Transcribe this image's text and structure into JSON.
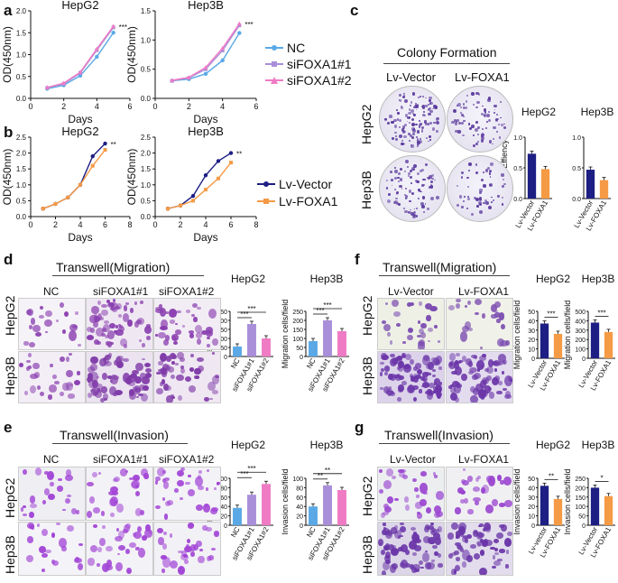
{
  "panels": {
    "a": {
      "letter": "a",
      "legend": [
        {
          "name": "NC",
          "color": "#5aa9e6"
        },
        {
          "name": "siFOXA1#1",
          "color": "#a98fd9"
        },
        {
          "name": "siFOXA1#2",
          "color": "#ef7bc4"
        }
      ]
    },
    "b": {
      "letter": "b",
      "legend": [
        {
          "name": "Lv-Vector",
          "color": "#1d1f84"
        },
        {
          "name": "Lv-FOXA1",
          "color": "#f59a45"
        }
      ]
    },
    "c": {
      "letter": "c",
      "title": "Colony Formation",
      "col_labels": [
        "Lv-Vector",
        "Lv-FOXA1"
      ],
      "row_labels": [
        "HepG2",
        "Hep3B"
      ]
    },
    "d": {
      "letter": "d",
      "title": "Transwell(Migration)",
      "col_labels": [
        "NC",
        "siFOXA1#1",
        "siFOXA1#2"
      ],
      "row_labels": [
        "HepG2",
        "Hep3B"
      ]
    },
    "e": {
      "letter": "e",
      "title": "Transwell(Invasion)",
      "col_labels": [
        "NC",
        "siFOXA1#1",
        "siFOXA1#2"
      ],
      "row_labels": [
        "HepG2",
        "Hep3B"
      ]
    },
    "f": {
      "letter": "f",
      "title": "Transwell(Migration)",
      "col_labels": [
        "Lv-Vector",
        "Lv-FOXA1"
      ],
      "row_labels": [
        "HepG2",
        "Hep3B"
      ]
    },
    "g": {
      "letter": "g",
      "title": "Transwell(Invasion)",
      "col_labels": [
        "Lv-Vector",
        "Lv-FOXA1"
      ],
      "row_labels": [
        "HepG2",
        "Hep3B"
      ]
    }
  },
  "chart_data": [
    {
      "id": "a-hepg2",
      "type": "line",
      "title": "HepG2",
      "xlabel": "Days",
      "ylabel": "OD(450nm)",
      "xlim": [
        0,
        6
      ],
      "ylim": [
        0,
        2
      ],
      "xticks": [
        0,
        2,
        4,
        6
      ],
      "yticks": [
        0,
        0.5,
        1.0,
        1.5,
        2.0
      ],
      "series": [
        {
          "name": "NC",
          "color": "#5aa9e6",
          "x": [
            1,
            2,
            3,
            4,
            5
          ],
          "y": [
            0.22,
            0.3,
            0.52,
            0.95,
            1.5
          ]
        },
        {
          "name": "siFOXA1#1",
          "color": "#a98fd9",
          "x": [
            1,
            2,
            3,
            4,
            5
          ],
          "y": [
            0.24,
            0.33,
            0.58,
            1.1,
            1.62
          ]
        },
        {
          "name": "siFOXA1#2",
          "color": "#ef7bc4",
          "x": [
            1,
            2,
            3,
            4,
            5
          ],
          "y": [
            0.25,
            0.35,
            0.6,
            1.13,
            1.65
          ]
        }
      ],
      "annotations": [
        "***"
      ]
    },
    {
      "id": "a-hep3b",
      "type": "line",
      "title": "Hep3B",
      "xlabel": "Days",
      "ylabel": "OD(450nm)",
      "xlim": [
        0,
        6
      ],
      "ylim": [
        0,
        1.5
      ],
      "xticks": [
        0,
        2,
        4,
        6
      ],
      "yticks": [
        0,
        0.5,
        1.0,
        1.5
      ],
      "series": [
        {
          "name": "NC",
          "color": "#5aa9e6",
          "x": [
            1,
            2,
            3,
            4,
            5
          ],
          "y": [
            0.3,
            0.33,
            0.42,
            0.65,
            1.12
          ]
        },
        {
          "name": "siFOXA1#1",
          "color": "#a98fd9",
          "x": [
            1,
            2,
            3,
            4,
            5
          ],
          "y": [
            0.3,
            0.35,
            0.5,
            0.82,
            1.25
          ]
        },
        {
          "name": "siFOXA1#2",
          "color": "#ef7bc4",
          "x": [
            1,
            2,
            3,
            4,
            5
          ],
          "y": [
            0.31,
            0.36,
            0.53,
            0.86,
            1.28
          ]
        }
      ],
      "annotations": [
        "***"
      ]
    },
    {
      "id": "b-hepg2",
      "type": "line",
      "title": "HepG2",
      "xlabel": "Days",
      "ylabel": "OD(450nm)",
      "xlim": [
        0,
        8
      ],
      "ylim": [
        0,
        2.5
      ],
      "xticks": [
        0,
        2,
        4,
        6,
        8
      ],
      "yticks": [
        0,
        0.5,
        1.0,
        1.5,
        2.0,
        2.5
      ],
      "series": [
        {
          "name": "Lv-Vector",
          "color": "#1d1f84",
          "x": [
            1,
            2,
            3,
            4,
            5,
            6
          ],
          "y": [
            0.25,
            0.4,
            0.6,
            1.0,
            1.9,
            2.3
          ]
        },
        {
          "name": "Lv-FOXA1",
          "color": "#f59a45",
          "x": [
            1,
            2,
            3,
            4,
            5,
            6
          ],
          "y": [
            0.25,
            0.4,
            0.6,
            1.0,
            1.6,
            2.1
          ]
        }
      ],
      "annotations": [
        "**"
      ]
    },
    {
      "id": "b-hep3b",
      "type": "line",
      "title": "Hep3B",
      "xlabel": "Days",
      "ylabel": "OD(450nm)",
      "xlim": [
        0,
        8
      ],
      "ylim": [
        0,
        2.5
      ],
      "xticks": [
        0,
        2,
        4,
        6,
        8
      ],
      "yticks": [
        0,
        0.5,
        1.0,
        1.5,
        2.0,
        2.5
      ],
      "series": [
        {
          "name": "Lv-Vector",
          "color": "#1d1f84",
          "x": [
            1,
            2,
            3,
            4,
            5,
            6
          ],
          "y": [
            0.25,
            0.35,
            0.65,
            1.3,
            1.75,
            2.0
          ]
        },
        {
          "name": "Lv-FOXA1",
          "color": "#f59a45",
          "x": [
            1,
            2,
            3,
            4,
            5,
            6
          ],
          "y": [
            0.25,
            0.35,
            0.5,
            0.85,
            1.2,
            1.7
          ]
        }
      ],
      "annotations": [
        "**"
      ]
    },
    {
      "id": "c-hepg2",
      "type": "bar",
      "title": "HepG2",
      "ylabel": "Colony Effiency",
      "ylim": [
        0,
        1.0
      ],
      "yticks": [
        0,
        0.5,
        1.0
      ],
      "categories": [
        "Lv-Vector",
        "Lv-FOXA1"
      ],
      "values": [
        0.73,
        0.48
      ],
      "colors": [
        "#1d1f84",
        "#f59a45"
      ],
      "sig": ""
    },
    {
      "id": "c-hep3b",
      "type": "bar",
      "title": "Hep3B",
      "ylabel": "",
      "ylim": [
        0,
        1.0
      ],
      "yticks": [
        0,
        0.5,
        1.0
      ],
      "categories": [
        "Lv-Vector",
        "Lv-FOXA1"
      ],
      "values": [
        0.47,
        0.3
      ],
      "colors": [
        "#1d1f84",
        "#f59a45"
      ],
      "sig": ""
    },
    {
      "id": "d-hepg2",
      "type": "bar",
      "title": "HepG2",
      "ylabel": "Migration cells/field",
      "ylim": [
        0,
        250
      ],
      "yticks": [
        0,
        50,
        100,
        150,
        200,
        250
      ],
      "categories": [
        "NC",
        "siFOXA1#1",
        "siFOXA1#2"
      ],
      "values": [
        55,
        180,
        100
      ],
      "colors": [
        "#5aa9e6",
        "#a98fd9",
        "#ef7bc4"
      ],
      "sig": "***"
    },
    {
      "id": "d-hep3b",
      "type": "bar",
      "title": "Hep3B",
      "ylabel": "Migration cells/field",
      "ylim": [
        0,
        250
      ],
      "yticks": [
        0,
        50,
        100,
        150,
        200,
        250
      ],
      "categories": [
        "NC",
        "siFOXA1#1",
        "siFOXA1#2"
      ],
      "values": [
        85,
        200,
        140
      ],
      "colors": [
        "#5aa9e6",
        "#a98fd9",
        "#ef7bc4"
      ],
      "sig": "***"
    },
    {
      "id": "e-hepg2",
      "type": "bar",
      "title": "HepG2",
      "ylabel": "Invasion cells/field",
      "ylim": [
        0,
        100
      ],
      "yticks": [
        0,
        20,
        40,
        60,
        80,
        100
      ],
      "categories": [
        "NC",
        "siFOXA1#1",
        "siFOXA1#2"
      ],
      "values": [
        37,
        65,
        88
      ],
      "colors": [
        "#5aa9e6",
        "#a98fd9",
        "#ef7bc4"
      ],
      "sig": "***"
    },
    {
      "id": "e-hep3b",
      "type": "bar",
      "title": "Hep3B",
      "ylabel": "Invasion cells/field",
      "ylim": [
        0,
        100
      ],
      "yticks": [
        0,
        20,
        40,
        60,
        80,
        100
      ],
      "categories": [
        "NC",
        "siFOXA1#1",
        "siFOXA1#2"
      ],
      "values": [
        40,
        85,
        75
      ],
      "colors": [
        "#5aa9e6",
        "#a98fd9",
        "#ef7bc4"
      ],
      "sig": "**"
    },
    {
      "id": "f-hepg2",
      "type": "bar",
      "title": "HepG2",
      "ylabel": "Migration cells/field",
      "ylim": [
        0,
        50
      ],
      "yticks": [
        0,
        10,
        20,
        30,
        40,
        50
      ],
      "categories": [
        "Lv-Vector",
        "Lv-FOXA1"
      ],
      "values": [
        37,
        26
      ],
      "colors": [
        "#1d1f84",
        "#f59a45"
      ],
      "sig": "***"
    },
    {
      "id": "f-hep3b",
      "type": "bar",
      "title": "Hep3B",
      "ylabel": "Migration cells/field",
      "ylim": [
        0,
        500
      ],
      "yticks": [
        0,
        100,
        200,
        300,
        400,
        500
      ],
      "categories": [
        "Lv-Vector",
        "Lv-FOXA1"
      ],
      "values": [
        380,
        280
      ],
      "colors": [
        "#1d1f84",
        "#f59a45"
      ],
      "sig": "***"
    },
    {
      "id": "g-hepg2",
      "type": "bar",
      "title": "HepG2",
      "ylabel": "Invasion cells/field",
      "ylim": [
        0,
        50
      ],
      "yticks": [
        0,
        10,
        20,
        30,
        40,
        50
      ],
      "categories": [
        "Lv-vector",
        "Lv-FOXA1"
      ],
      "values": [
        42,
        28
      ],
      "colors": [
        "#1d1f84",
        "#f59a45"
      ],
      "sig": "**"
    },
    {
      "id": "g-hep3b",
      "type": "bar",
      "title": "Hep3B",
      "ylabel": "Invasion cells/field",
      "ylim": [
        0,
        250
      ],
      "yticks": [
        0,
        50,
        100,
        150,
        200,
        250
      ],
      "categories": [
        "Lv-Vector",
        "Lv-FOXA1"
      ],
      "values": [
        200,
        155
      ],
      "colors": [
        "#1d1f84",
        "#f59a45"
      ],
      "sig": "*"
    }
  ]
}
